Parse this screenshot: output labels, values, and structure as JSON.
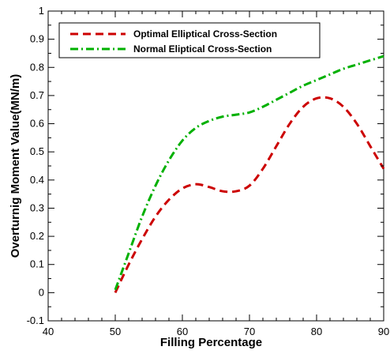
{
  "chart_data": {
    "type": "line",
    "title": "",
    "xlabel": "Filling Percentage",
    "ylabel": "Overturnig Moment Value(MN/m)",
    "xlim": [
      40,
      90
    ],
    "ylim": [
      -0.1,
      1
    ],
    "xticks": [
      40,
      50,
      60,
      70,
      80,
      90
    ],
    "yticks": [
      -0.1,
      0,
      0.1,
      0.2,
      0.3,
      0.4,
      0.5,
      0.6,
      0.7,
      0.8,
      0.9,
      1
    ],
    "ytick_labels": [
      "-0.1",
      "0",
      "0.1",
      "0.2",
      "0.3",
      "0.4",
      "0.5",
      "0.6",
      "0.7",
      "0.8",
      "0.9",
      "1"
    ],
    "xtick_labels": [
      "40",
      "50",
      "60",
      "70",
      "80",
      "90"
    ],
    "grid": false,
    "legend_position": "top-left",
    "series": [
      {
        "name": "Optimal Elliptical Cross-Section",
        "color": "#cc0000",
        "dash": "dashed",
        "x": [
          50,
          52,
          54,
          56,
          58,
          60,
          62,
          64,
          66,
          68,
          70,
          72,
          74,
          76,
          78,
          80,
          82,
          84,
          86,
          88,
          90
        ],
        "y": [
          0.0,
          0.1,
          0.19,
          0.27,
          0.33,
          0.37,
          0.385,
          0.375,
          0.36,
          0.36,
          0.38,
          0.44,
          0.52,
          0.6,
          0.66,
          0.69,
          0.69,
          0.66,
          0.6,
          0.52,
          0.44
        ]
      },
      {
        "name": "Normal Eliptical Cross-Section",
        "color": "#00b000",
        "dash": "dashdot",
        "x": [
          50,
          52,
          54,
          56,
          58,
          60,
          62,
          64,
          66,
          68,
          70,
          72,
          74,
          76,
          78,
          80,
          82,
          84,
          86,
          88,
          90
        ],
        "y": [
          0.01,
          0.14,
          0.27,
          0.38,
          0.47,
          0.54,
          0.585,
          0.61,
          0.625,
          0.632,
          0.64,
          0.66,
          0.685,
          0.71,
          0.735,
          0.755,
          0.775,
          0.795,
          0.81,
          0.825,
          0.84
        ]
      }
    ]
  }
}
